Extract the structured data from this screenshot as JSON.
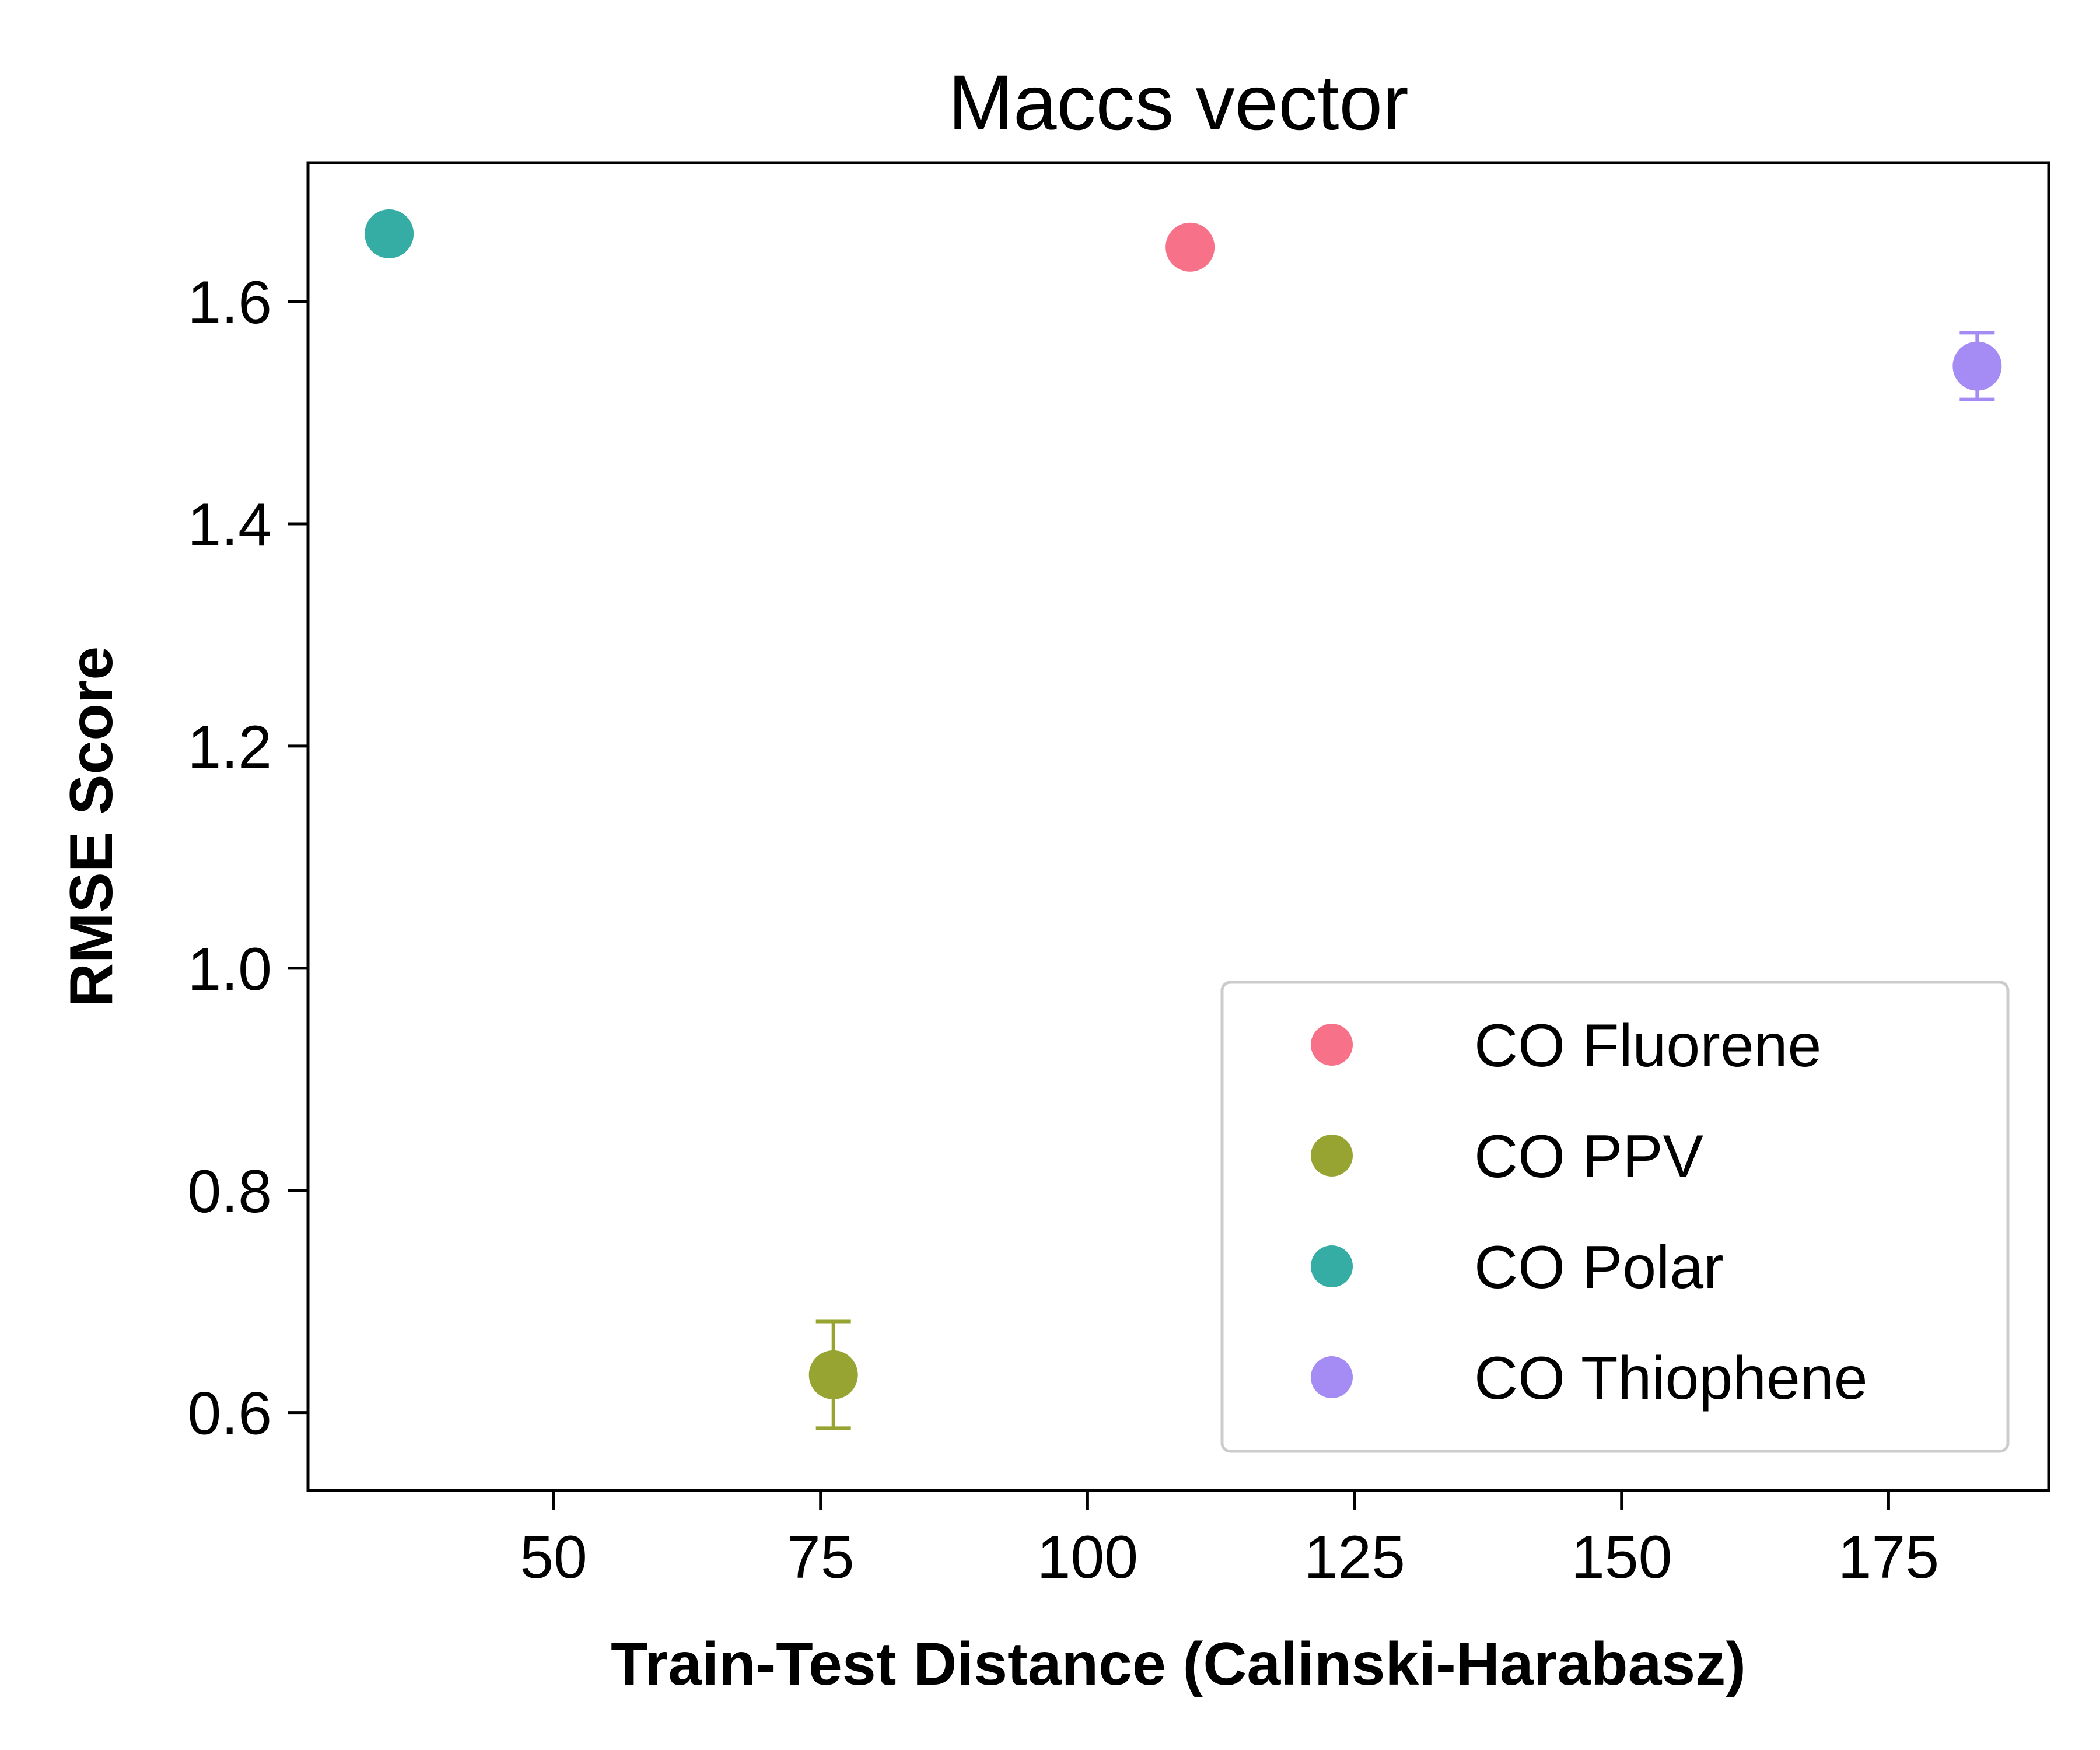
{
  "chart_data": {
    "type": "scatter",
    "title": "Maccs vector",
    "xlabel": "Train-Test Distance (Calinski-Harabasz)",
    "ylabel": "RMSE Score",
    "xlim": [
      27,
      190
    ],
    "ylim": [
      0.53,
      1.725
    ],
    "xticks": [
      50,
      75,
      100,
      125,
      150,
      175
    ],
    "yticks": [
      0.6,
      0.8,
      1.0,
      1.2,
      1.4,
      1.6
    ],
    "xtick_labels": [
      "50",
      "75",
      "100",
      "125",
      "150",
      "175"
    ],
    "ytick_labels": [
      "0.6",
      "0.8",
      "1.0",
      "1.2",
      "1.4",
      "1.6"
    ],
    "grid": false,
    "legend_position": "lower-right",
    "series": [
      {
        "name": "CO Fluorene",
        "color": "#f77189",
        "x": 109.6,
        "y": 1.649,
        "yerr": 0.012
      },
      {
        "name": "CO PPV",
        "color": "#97a431",
        "x": 76.2,
        "y": 0.634,
        "yerr": 0.048
      },
      {
        "name": "CO Polar",
        "color": "#36ada4",
        "x": 34.6,
        "y": 1.661,
        "yerr": 0.0
      },
      {
        "name": "CO Thiophene",
        "color": "#a48cf4",
        "x": 183.3,
        "y": 1.542,
        "yerr": 0.03
      }
    ]
  }
}
